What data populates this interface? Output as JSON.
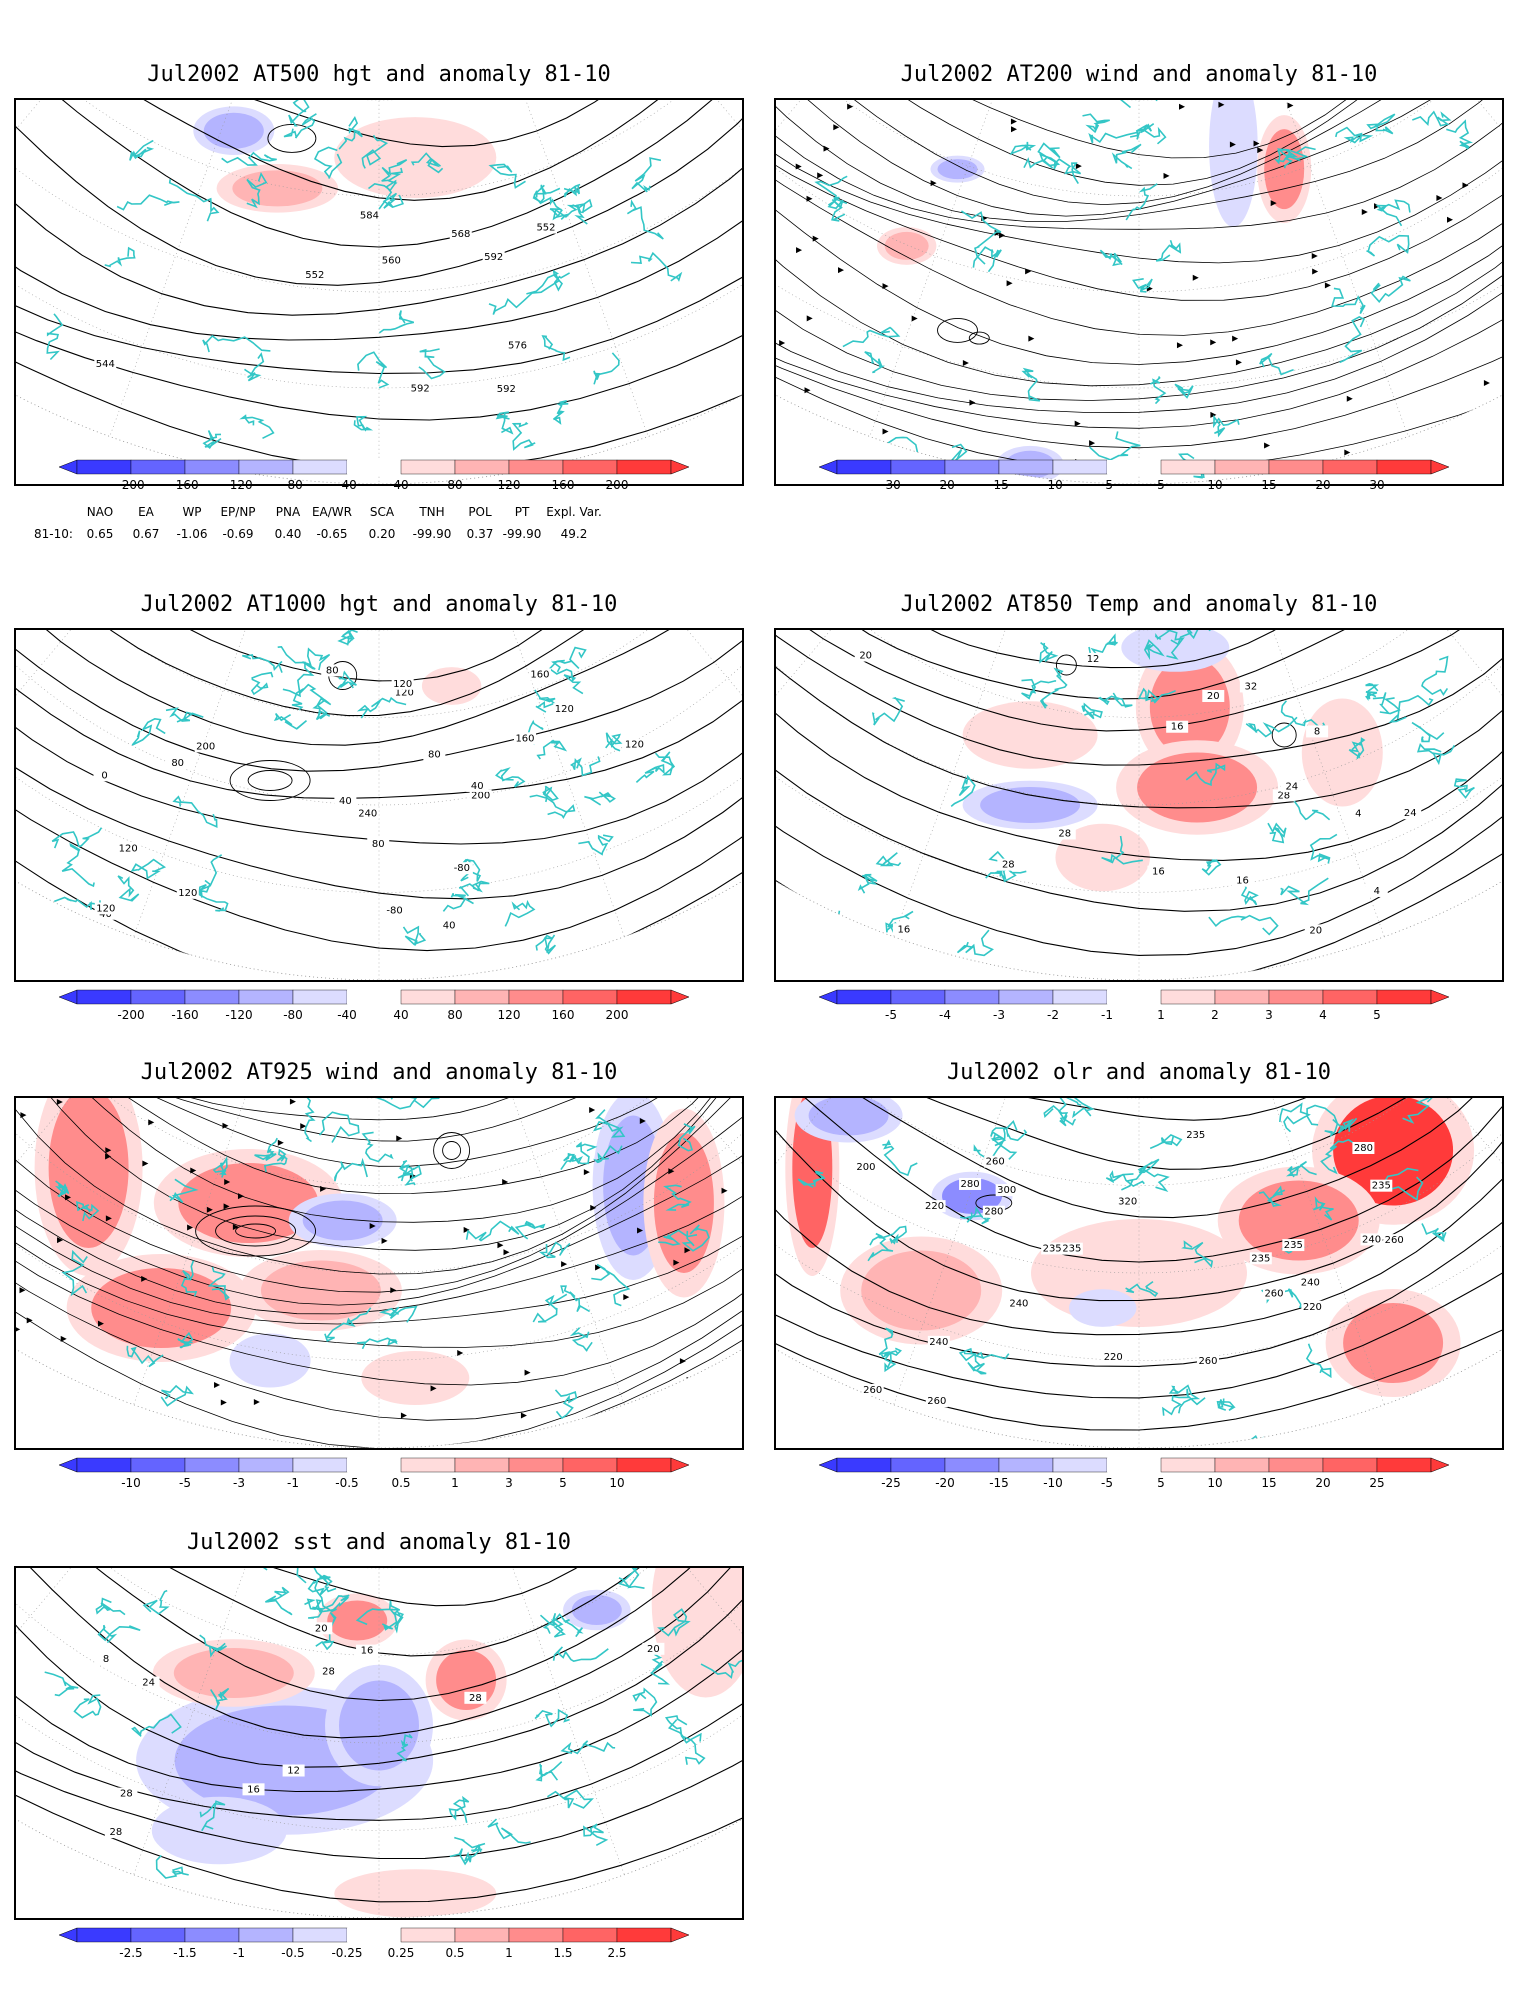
{
  "panels": [
    {
      "id": "p1",
      "title": "Jul2002 AT500 hgt and anomaly 81-10",
      "colorbar_ticks": [
        "-200",
        "-160",
        "-120",
        "-80",
        "-40",
        "40",
        "80",
        "120",
        "160",
        "200"
      ],
      "contour_labels": [
        "544",
        "552",
        "552",
        "560",
        "568",
        "576",
        "584",
        "592",
        "592",
        "592"
      ]
    },
    {
      "id": "p2",
      "title": "Jul2002 AT200 wind and anomaly 81-10",
      "colorbar_ticks": [
        "-30",
        "-20",
        "-15",
        "-10",
        "-5",
        "5",
        "10",
        "15",
        "20",
        "30"
      ],
      "contour_labels": []
    },
    {
      "id": "p3",
      "title": "Jul2002 AT1000 hgt and anomaly 81-10",
      "colorbar_ticks": [
        "-200",
        "-160",
        "-120",
        "-80",
        "-40",
        "40",
        "80",
        "120",
        "160",
        "200"
      ],
      "contour_labels": [
        "40",
        "-80",
        "80",
        "40",
        "160",
        "-80",
        "0",
        "120",
        "200",
        "240",
        "40",
        "120",
        "120",
        "200",
        "160",
        "80",
        "80",
        "40",
        "120",
        "120",
        "120",
        "80",
        "120"
      ]
    },
    {
      "id": "p4",
      "title": "Jul2002 AT850 Temp and anomaly 81-10",
      "colorbar_ticks": [
        "-5",
        "-4",
        "-3",
        "-2",
        "-1",
        "1",
        "2",
        "3",
        "4",
        "5"
      ],
      "contour_labels": [
        "20",
        "16",
        "4",
        "4",
        "8",
        "12",
        "28",
        "32",
        "24",
        "28",
        "16",
        "28",
        "24",
        "16",
        "16",
        "20",
        "20"
      ]
    },
    {
      "id": "p5",
      "title": "Jul2002 AT925 wind and anomaly 81-10",
      "colorbar_ticks": [
        "-10",
        "-5",
        "-3",
        "-1",
        "-0.5",
        "0.5",
        "1",
        "3",
        "5",
        "10"
      ],
      "contour_labels": []
    },
    {
      "id": "p6",
      "title": "Jul2002 olr and anomaly 81-10",
      "colorbar_ticks": [
        "-25",
        "-20",
        "-15",
        "-10",
        "-5",
        "5",
        "10",
        "15",
        "20",
        "25"
      ],
      "contour_labels": [
        "200",
        "240",
        "260",
        "220",
        "235",
        "280",
        "240",
        "260",
        "235",
        "240",
        "220",
        "235",
        "260",
        "280",
        "320",
        "300",
        "280",
        "260",
        "235",
        "220",
        "240",
        "235",
        "260",
        "235",
        "260"
      ]
    },
    {
      "id": "p7",
      "title": "Jul2002 sst and anomaly 81-10",
      "colorbar_ticks": [
        "-2.5",
        "-1.5",
        "-1",
        "-0.5",
        "-0.25",
        "0.25",
        "0.5",
        "1",
        "1.5",
        "2.5"
      ],
      "contour_labels": [
        "8",
        "12",
        "16",
        "16",
        "20",
        "24",
        "28",
        "28",
        "28",
        "28",
        "20"
      ]
    }
  ],
  "eof_table": {
    "header": [
      "NAO",
      "EA",
      "WP",
      "EP/NP",
      "PNA",
      "EA/WR",
      "SCA",
      "TNH",
      "POL",
      "PT",
      "Expl. Var."
    ],
    "row_label": "81-10:",
    "values": [
      "0.65",
      "0.67",
      "-1.06",
      "-0.69",
      "0.40",
      "-0.65",
      "0.20",
      "-99.90",
      "0.37",
      "-99.90",
      "49.2"
    ]
  },
  "colors": {
    "coast": "#33c6c6",
    "blue_scale": [
      "#3a3aff",
      "#6464ff",
      "#8c8cff",
      "#b4b4ff",
      "#dcdcff"
    ],
    "red_scale": [
      "#ffdcdc",
      "#ffb4b4",
      "#ff8c8c",
      "#ff6464",
      "#ff3a3a"
    ],
    "contour": "#000000"
  }
}
